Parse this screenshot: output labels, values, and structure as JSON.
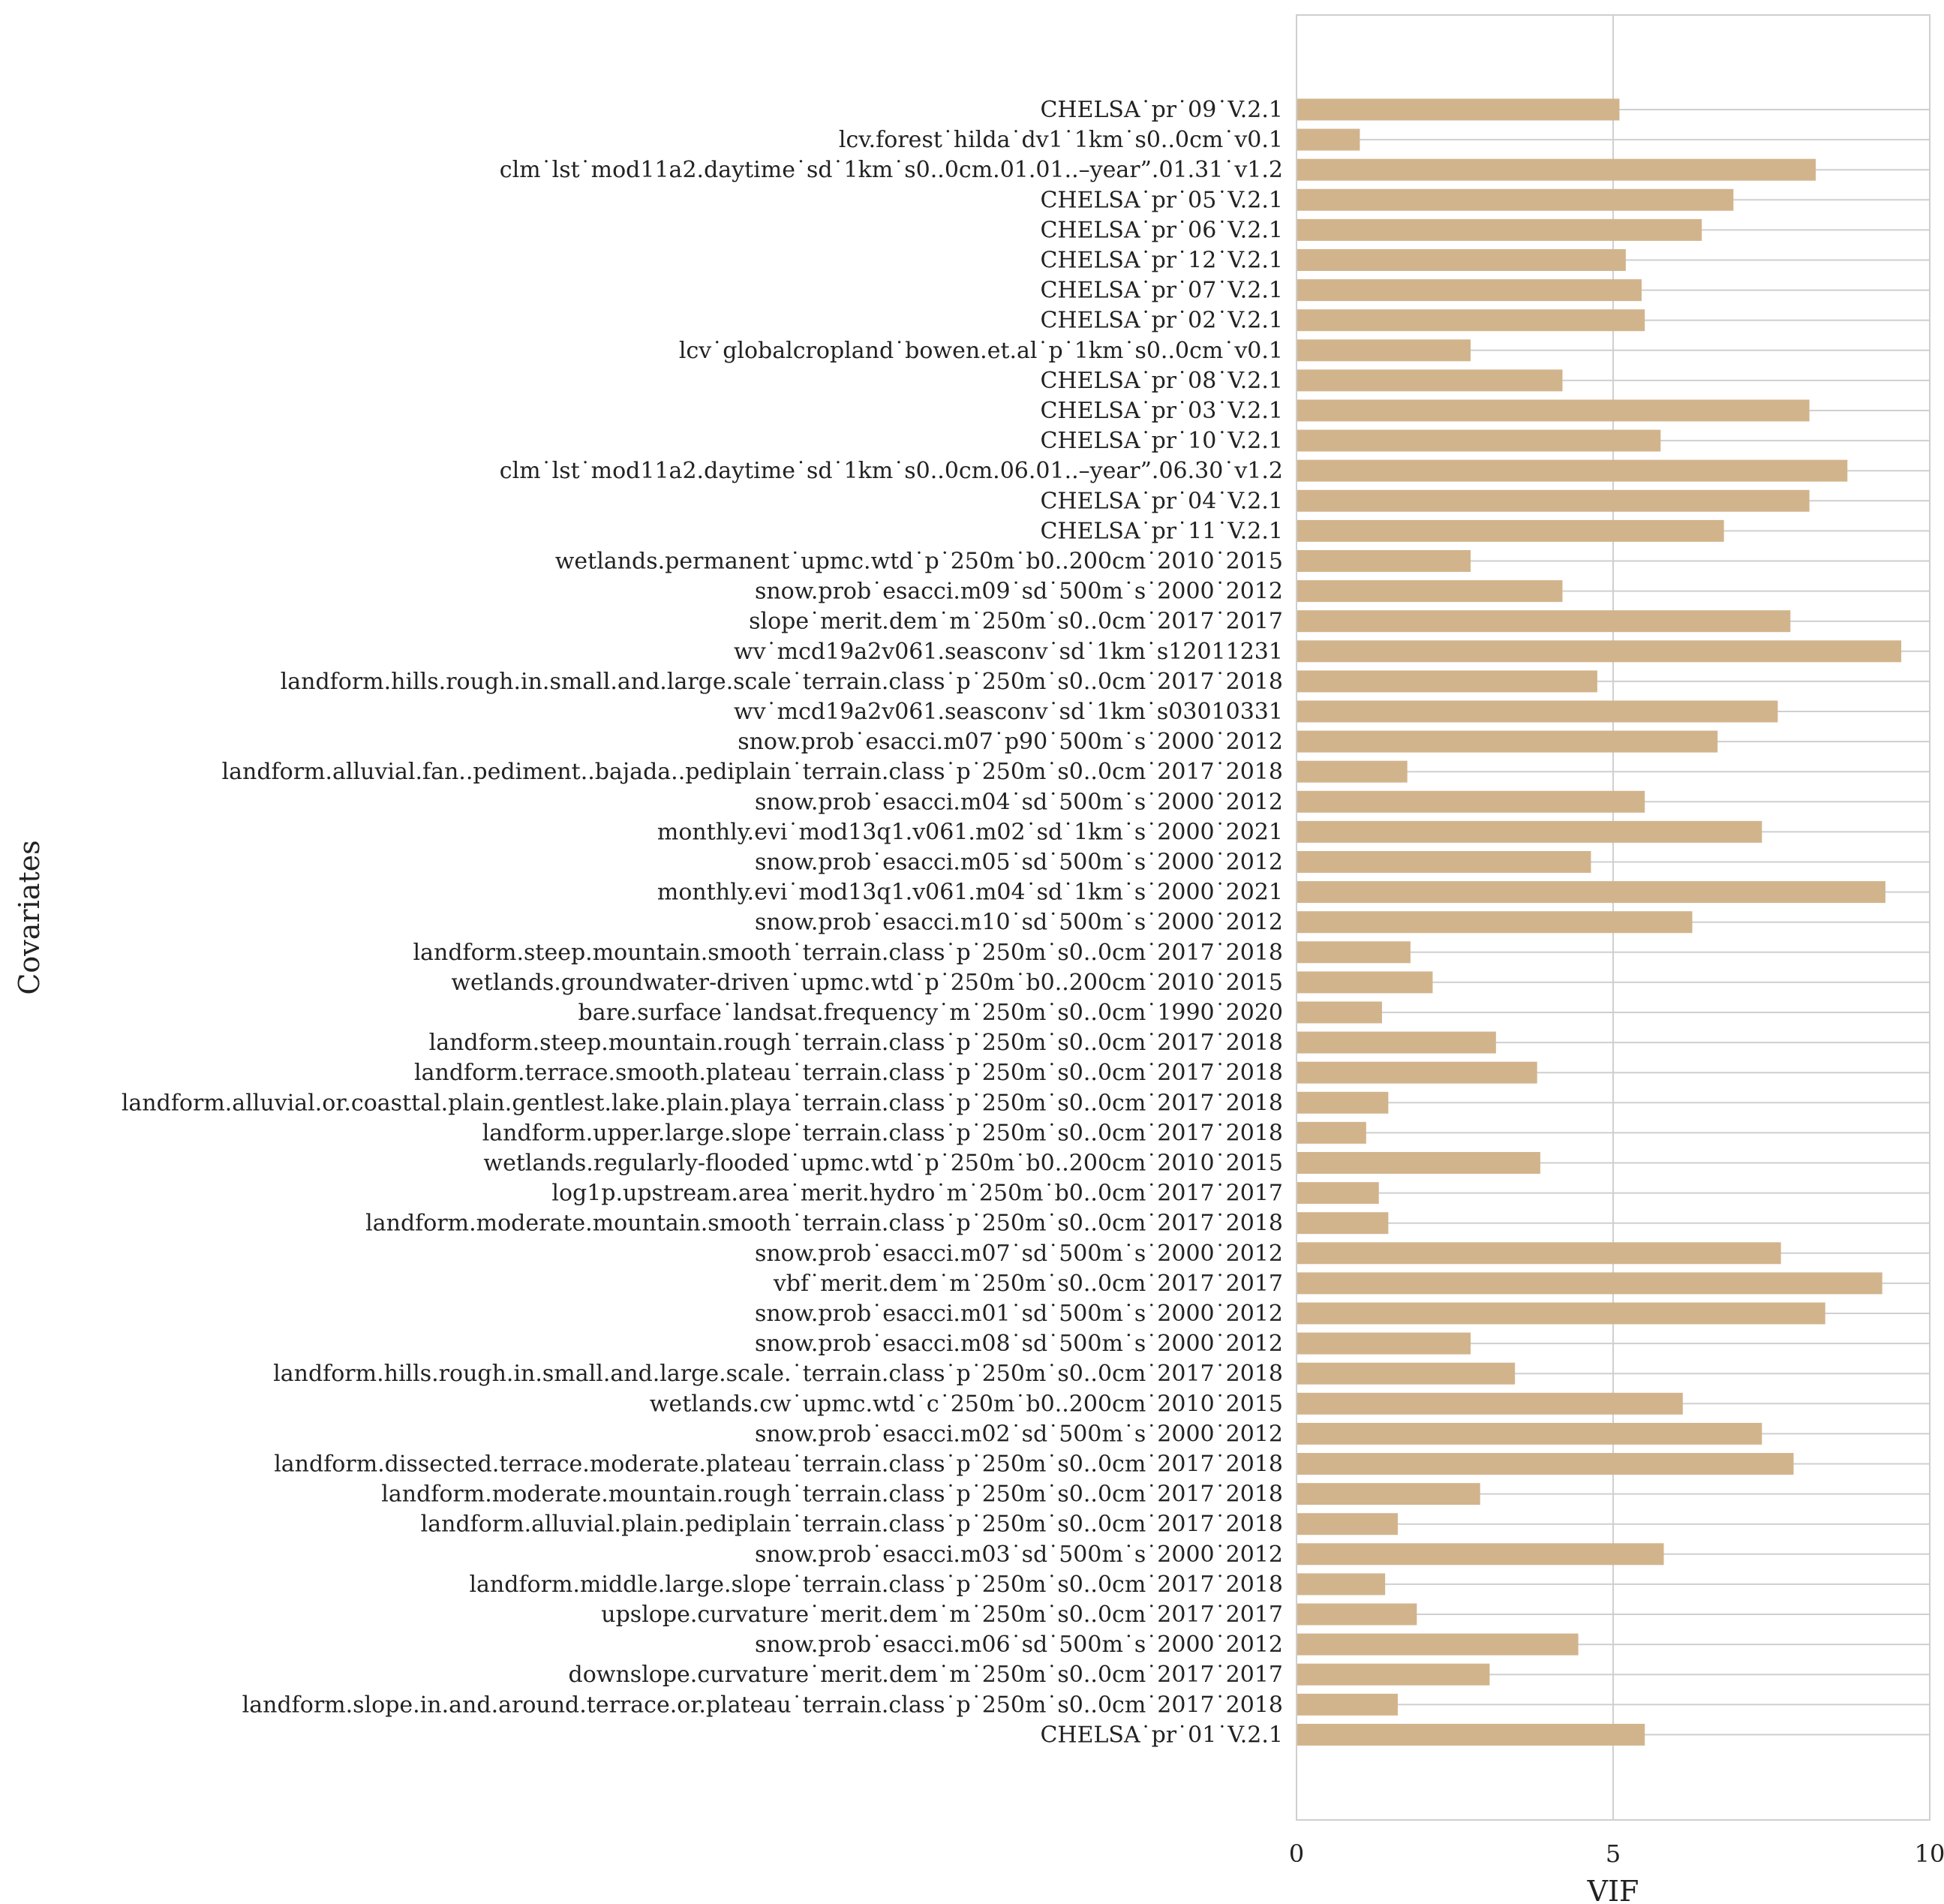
{
  "chart_data": {
    "type": "bar",
    "orientation": "horizontal",
    "title": "",
    "xlabel": "VIF",
    "ylabel": "Covariates",
    "xlim": [
      0,
      10
    ],
    "xticks": [
      "0",
      "5",
      "10"
    ],
    "grid": true,
    "bar_color": "#d2b48c",
    "categories": [
      "CHELSA˙pr˙09˙V.2.1",
      "lcv.forest˙hilda˙dv1˙1km˙s0..0cm˙v0.1",
      "clm˙lst˙mod11a2.daytime˙sd˙1km˙s0..0cm.01.01..–year”.01.31˙v1.2",
      "CHELSA˙pr˙05˙V.2.1",
      "CHELSA˙pr˙06˙V.2.1",
      "CHELSA˙pr˙12˙V.2.1",
      "CHELSA˙pr˙07˙V.2.1",
      "CHELSA˙pr˙02˙V.2.1",
      "lcv˙globalcropland˙bowen.et.al˙p˙1km˙s0..0cm˙v0.1",
      "CHELSA˙pr˙08˙V.2.1",
      "CHELSA˙pr˙03˙V.2.1",
      "CHELSA˙pr˙10˙V.2.1",
      "clm˙lst˙mod11a2.daytime˙sd˙1km˙s0..0cm.06.01..–year”.06.30˙v1.2",
      "CHELSA˙pr˙04˙V.2.1",
      "CHELSA˙pr˙11˙V.2.1",
      "wetlands.permanent˙upmc.wtd˙p˙250m˙b0..200cm˙2010˙2015",
      "snow.prob˙esacci.m09˙sd˙500m˙s˙2000˙2012",
      "slope˙merit.dem˙m˙250m˙s0..0cm˙2017˙2017",
      "wv˙mcd19a2v061.seasconv˙sd˙1km˙s12011231",
      "landform.hills.rough.in.small.and.large.scale˙terrain.class˙p˙250m˙s0..0cm˙2017˙2018",
      "wv˙mcd19a2v061.seasconv˙sd˙1km˙s03010331",
      "snow.prob˙esacci.m07˙p90˙500m˙s˙2000˙2012",
      "landform.alluvial.fan..pediment..bajada..pediplain˙terrain.class˙p˙250m˙s0..0cm˙2017˙2018",
      "snow.prob˙esacci.m04˙sd˙500m˙s˙2000˙2012",
      "monthly.evi˙mod13q1.v061.m02˙sd˙1km˙s˙2000˙2021",
      "snow.prob˙esacci.m05˙sd˙500m˙s˙2000˙2012",
      "monthly.evi˙mod13q1.v061.m04˙sd˙1km˙s˙2000˙2021",
      "snow.prob˙esacci.m10˙sd˙500m˙s˙2000˙2012",
      "landform.steep.mountain.smooth˙terrain.class˙p˙250m˙s0..0cm˙2017˙2018",
      "wetlands.groundwater-driven˙upmc.wtd˙p˙250m˙b0..200cm˙2010˙2015",
      "bare.surface˙landsat.frequency˙m˙250m˙s0..0cm˙1990˙2020",
      "landform.steep.mountain.rough˙terrain.class˙p˙250m˙s0..0cm˙2017˙2018",
      "landform.terrace.smooth.plateau˙terrain.class˙p˙250m˙s0..0cm˙2017˙2018",
      "landform.alluvial.or.coasttal.plain.gentlest.lake.plain.playa˙terrain.class˙p˙250m˙s0..0cm˙2017˙2018",
      "landform.upper.large.slope˙terrain.class˙p˙250m˙s0..0cm˙2017˙2018",
      "wetlands.regularly-flooded˙upmc.wtd˙p˙250m˙b0..200cm˙2010˙2015",
      "log1p.upstream.area˙merit.hydro˙m˙250m˙b0..0cm˙2017˙2017",
      "landform.moderate.mountain.smooth˙terrain.class˙p˙250m˙s0..0cm˙2017˙2018",
      "snow.prob˙esacci.m07˙sd˙500m˙s˙2000˙2012",
      "vbf˙merit.dem˙m˙250m˙s0..0cm˙2017˙2017",
      "snow.prob˙esacci.m01˙sd˙500m˙s˙2000˙2012",
      "snow.prob˙esacci.m08˙sd˙500m˙s˙2000˙2012",
      "landform.hills.rough.in.small.and.large.scale.˙terrain.class˙p˙250m˙s0..0cm˙2017˙2018",
      "wetlands.cw˙upmc.wtd˙c˙250m˙b0..200cm˙2010˙2015",
      "snow.prob˙esacci.m02˙sd˙500m˙s˙2000˙2012",
      "landform.dissected.terrace.moderate.plateau˙terrain.class˙p˙250m˙s0..0cm˙2017˙2018",
      "landform.moderate.mountain.rough˙terrain.class˙p˙250m˙s0..0cm˙2017˙2018",
      "landform.alluvial.plain.pediplain˙terrain.class˙p˙250m˙s0..0cm˙2017˙2018",
      "snow.prob˙esacci.m03˙sd˙500m˙s˙2000˙2012",
      "landform.middle.large.slope˙terrain.class˙p˙250m˙s0..0cm˙2017˙2018",
      "upslope.curvature˙merit.dem˙m˙250m˙s0..0cm˙2017˙2017",
      "snow.prob˙esacci.m06˙sd˙500m˙s˙2000˙2012",
      "downslope.curvature˙merit.dem˙m˙250m˙s0..0cm˙2017˙2017",
      "landform.slope.in.and.around.terrace.or.plateau˙terrain.class˙p˙250m˙s0..0cm˙2017˙2018",
      "CHELSA˙pr˙01˙V.2.1"
    ],
    "values": [
      5.1,
      1.0,
      8.2,
      6.9,
      6.4,
      5.2,
      5.45,
      5.5,
      2.75,
      4.2,
      8.1,
      5.75,
      8.7,
      8.1,
      6.75,
      2.75,
      4.2,
      7.8,
      9.55,
      4.75,
      7.6,
      6.65,
      1.75,
      5.5,
      7.35,
      4.65,
      9.3,
      6.25,
      1.8,
      2.15,
      1.35,
      3.15,
      3.8,
      1.45,
      1.1,
      3.85,
      1.3,
      1.45,
      7.65,
      9.25,
      8.35,
      2.75,
      3.45,
      6.1,
      7.35,
      7.85,
      2.9,
      1.6,
      5.8,
      1.4,
      1.9,
      4.45,
      3.05,
      1.6,
      5.5
    ]
  }
}
